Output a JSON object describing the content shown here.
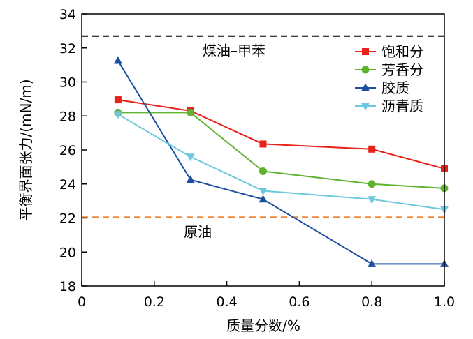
{
  "chart_data": {
    "type": "line",
    "title": "",
    "xlabel": "质量分数/%",
    "ylabel": "平衡界面张力/(mN/m)",
    "xlim": [
      0,
      1.0
    ],
    "ylim": [
      18,
      34
    ],
    "x_ticks": [
      "0",
      "0.2",
      "0.4",
      "0.6",
      "0.8",
      "1.0"
    ],
    "y_ticks": [
      "18",
      "20",
      "22",
      "24",
      "26",
      "28",
      "30",
      "32",
      "34"
    ],
    "x": [
      0.1,
      0.3,
      0.5,
      0.8,
      1.0
    ],
    "series": [
      {
        "name": "饱和分",
        "color": "#e8211b",
        "marker": "square",
        "values": [
          28.95,
          28.3,
          26.35,
          26.05,
          24.9
        ]
      },
      {
        "name": "芳香分",
        "color": "#5fb32e",
        "marker": "circle",
        "values": [
          28.2,
          28.2,
          24.75,
          24.0,
          23.75
        ]
      },
      {
        "name": "胶质",
        "color": "#1d4fa0",
        "marker": "triangle-up",
        "values": [
          31.25,
          24.25,
          23.1,
          19.3,
          19.3
        ]
      },
      {
        "name": "沥青质",
        "color": "#6cc8e0",
        "marker": "triangle-down",
        "values": [
          28.1,
          25.6,
          23.6,
          23.1,
          22.5
        ]
      }
    ],
    "reference_lines": [
      {
        "label": "煤油–甲苯",
        "y": 32.7,
        "color": "#000000",
        "style": "dashed"
      },
      {
        "label": "原油",
        "y": 22.05,
        "color": "#f0883c",
        "style": "dashed"
      }
    ],
    "legend_position": "top-right",
    "grid": false
  }
}
